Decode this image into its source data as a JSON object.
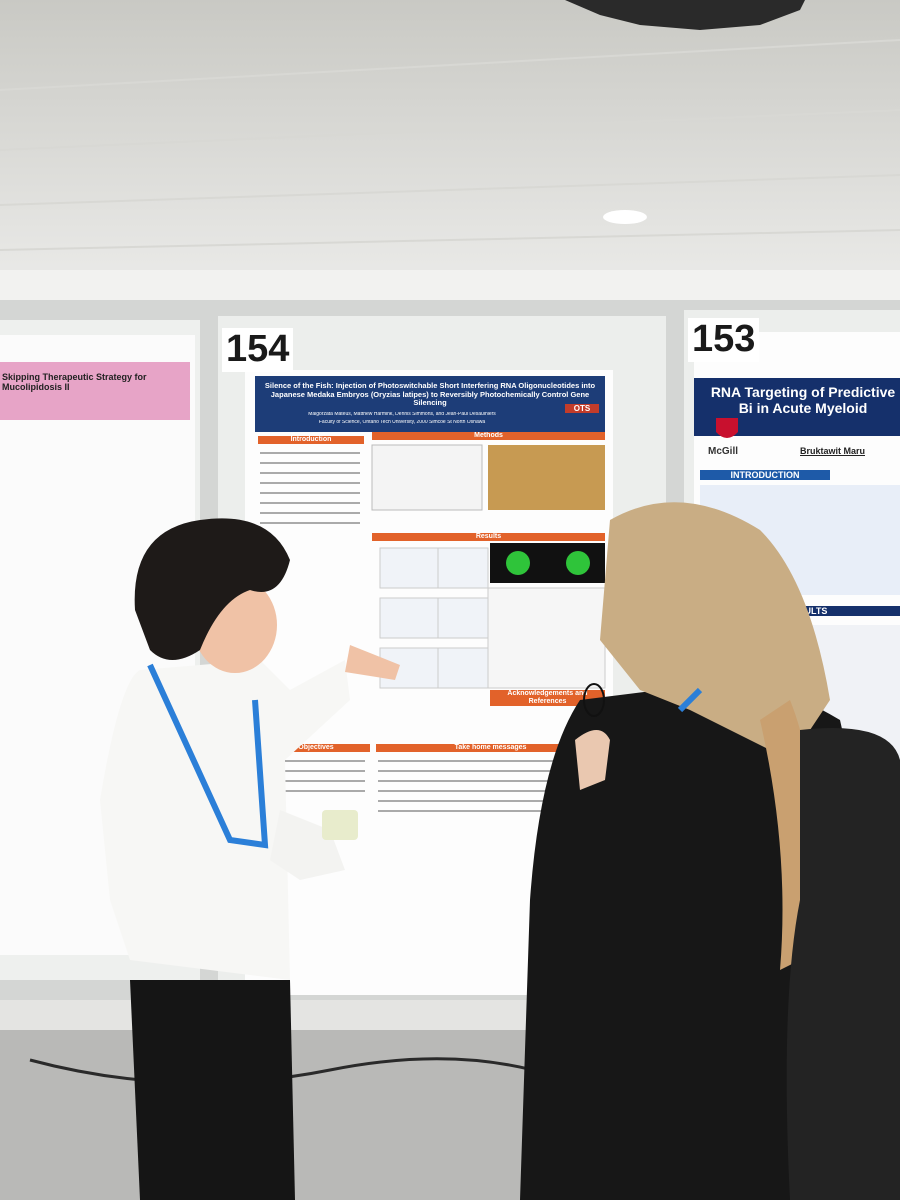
{
  "left_poster": {
    "title": "Skipping Therapeutic Strategy for Mucolipidosis II"
  },
  "center_poster": {
    "number": "154",
    "title": "Silence of the Fish: Injection of Photoswitchable Short Interfering RNA Oligonucleotides into Japanese Medaka Embryos (Oryzias latipes) to Reversibly Photochemically Control Gene Silencing",
    "authors": "Malgorzata Mateus, Matthew Harmink, Dennis Simmons, and Jean-Paul Desaulniers",
    "affiliation": "Faculty of Science, Ontario Tech University, 2000 Simcoe St North Oshawa",
    "logo": "OTS",
    "sections": [
      "Introduction",
      "Methods",
      "Results",
      "Objectives",
      "Acknowledgements and References",
      "Take home messages"
    ]
  },
  "right_poster": {
    "number": "153",
    "title": "RNA Targeting of Predictive Bi in Acute Myeloid",
    "logo": "McGill",
    "author": "Bruktawit Maru",
    "sections": [
      "INTRODUCTION",
      "RESULTS"
    ]
  }
}
